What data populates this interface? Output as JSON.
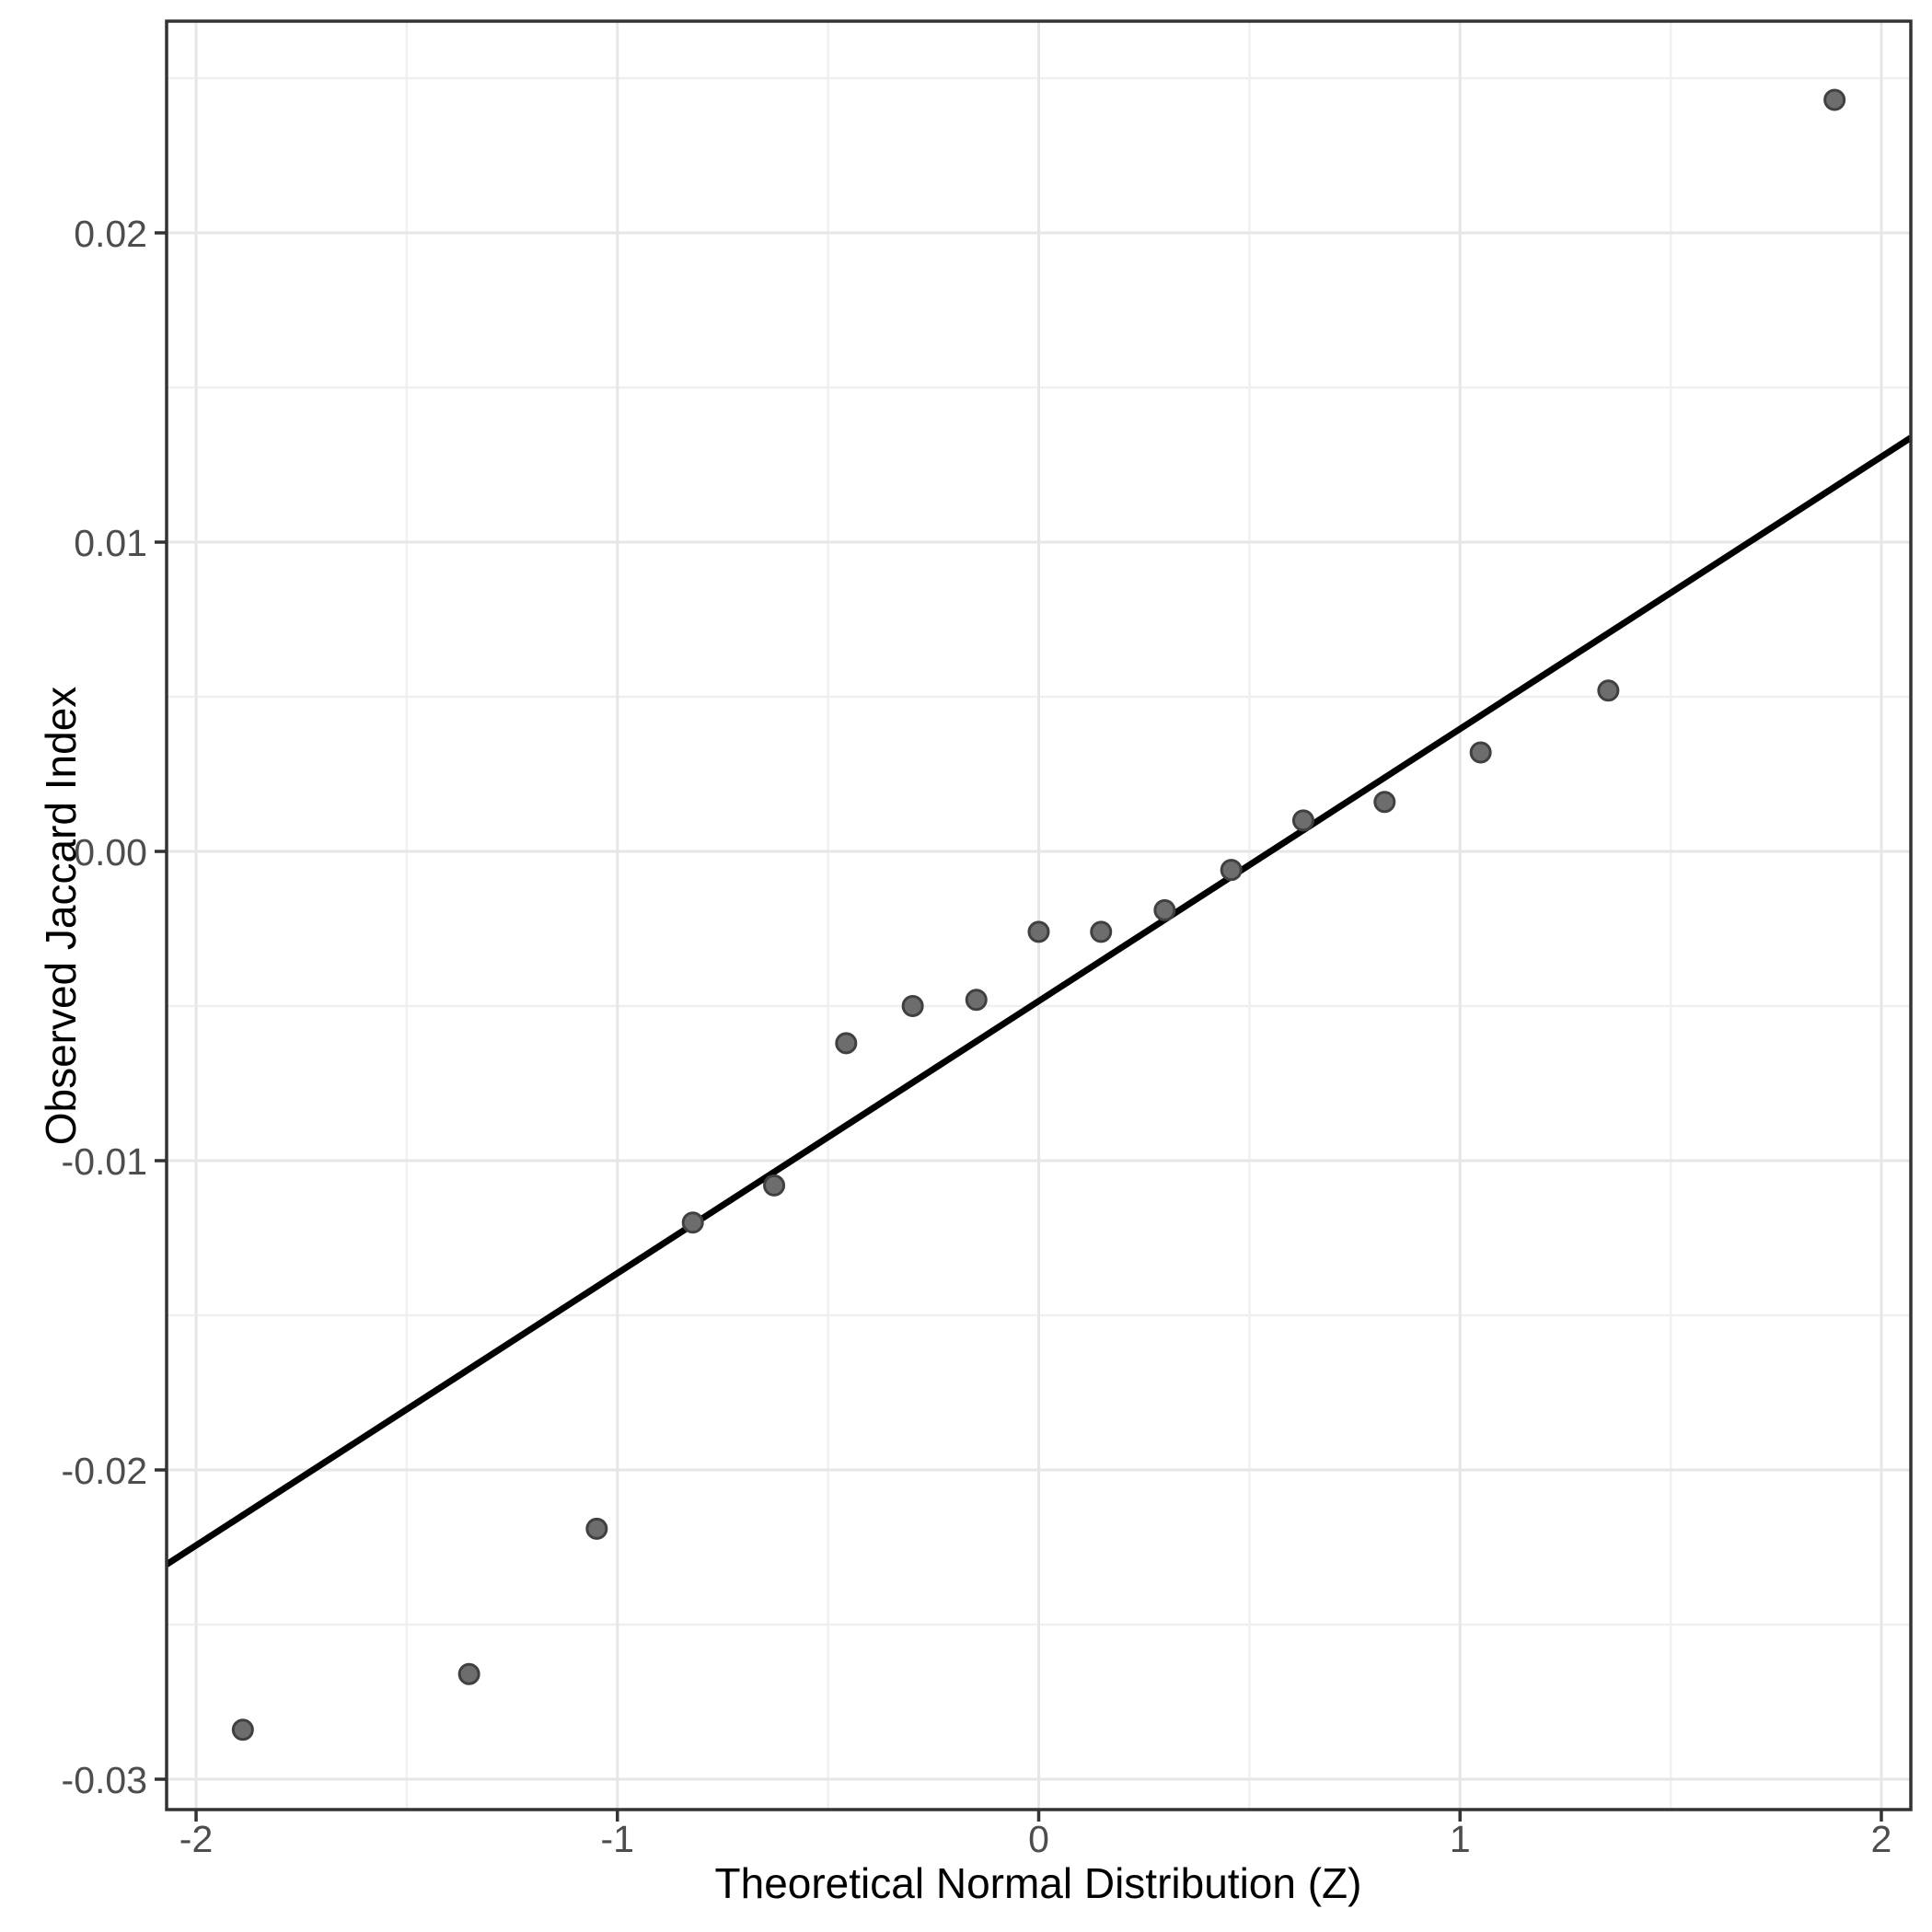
{
  "chart_data": {
    "type": "scatter",
    "subtype": "qq-plot",
    "title": "",
    "xlabel": "Theoretical Normal Distribution (Z)",
    "ylabel": "Observed Jaccard Index",
    "xlim": [
      -2.07,
      2.07
    ],
    "ylim": [
      -0.030982,
      0.026845
    ],
    "grid": "major-and-minor",
    "legend": "none",
    "x_ticks": {
      "values": [
        -2,
        -1,
        0,
        1,
        2
      ],
      "labels": [
        "-2",
        "-1",
        "0",
        "1",
        "2"
      ]
    },
    "y_ticks": {
      "values": [
        0.02,
        0.01,
        0.0,
        -0.01,
        -0.02,
        -0.03
      ],
      "labels": [
        "0.02",
        "0.01",
        "0.00",
        "-0.01",
        "-0.02",
        "-0.03"
      ]
    },
    "x_minor": [
      -1.5,
      -0.5,
      0.5,
      1.5
    ],
    "y_minor": [
      0.025,
      0.015,
      0.005,
      -0.005,
      -0.015,
      -0.025
    ],
    "points": [
      [
        -1.889,
        -0.0284
      ],
      [
        -1.352,
        -0.0266
      ],
      [
        -1.049,
        -0.0219
      ],
      [
        -0.821,
        -0.012
      ],
      [
        -0.628,
        -0.0108
      ],
      [
        -0.457,
        -0.0062
      ],
      [
        -0.299,
        -0.005
      ],
      [
        -0.148,
        -0.0048
      ],
      [
        0.0,
        -0.0026
      ],
      [
        0.148,
        -0.0026
      ],
      [
        0.299,
        -0.0019
      ],
      [
        0.457,
        -0.0006
      ],
      [
        0.628,
        0.001
      ],
      [
        0.821,
        0.0016
      ],
      [
        1.049,
        0.0032
      ],
      [
        1.352,
        0.0052
      ],
      [
        1.889,
        0.0243
      ]
    ],
    "qq_line": {
      "intercept": -0.00484,
      "slope": 0.0088
    },
    "colors": {
      "background": "#ffffff",
      "panel_background": "#ffffff",
      "border": "#333333",
      "grid_major": "#e6e6e6",
      "grid_minor": "#f0f0f0",
      "line": "#000000",
      "point_fill": "#6d6d6d",
      "point_stroke": "#404040",
      "tick_label": "#4d4d4d",
      "axis_title": "#000000"
    }
  }
}
